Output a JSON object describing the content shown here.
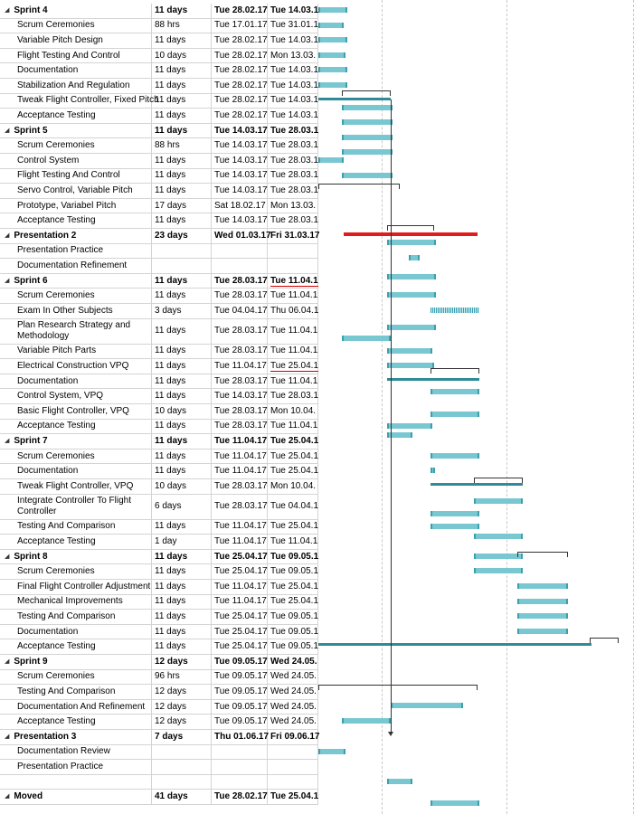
{
  "colors": {
    "task_bar": "#79c7d1",
    "task_bar_edge": "#3aa0ae",
    "summary_bar": "#2e8b97",
    "critical_bar": "#e01c1c",
    "grid": "#d4d4d4"
  },
  "rows": [
    {
      "name": "Sprint 4",
      "dur": "11 days",
      "start": "Tue 28.02.17",
      "finish": "Tue 14.03.1",
      "summary": true
    },
    {
      "name": "Scrum Ceremonies",
      "dur": "88 hrs",
      "start": "Tue 17.01.17",
      "finish": "Tue 31.01.1"
    },
    {
      "name": "Variable Pitch Design",
      "dur": "11 days",
      "start": "Tue 28.02.17",
      "finish": "Tue 14.03.1"
    },
    {
      "name": "Flight Testing And Control",
      "dur": "10 days",
      "start": "Tue 28.02.17",
      "finish": "Mon 13.03."
    },
    {
      "name": "Documentation",
      "dur": "11 days",
      "start": "Tue 28.02.17",
      "finish": "Tue 14.03.1"
    },
    {
      "name": "Stabilization And Regulation",
      "dur": "11 days",
      "start": "Tue 28.02.17",
      "finish": "Tue 14.03.1"
    },
    {
      "name": "Tweak Flight Controller, Fixed Pitch",
      "dur": "11 days",
      "start": "Tue 28.02.17",
      "finish": "Tue 14.03.1"
    },
    {
      "name": "Acceptance Testing",
      "dur": "11 days",
      "start": "Tue 28.02.17",
      "finish": "Tue 14.03.1"
    },
    {
      "name": "Sprint 5",
      "dur": "11 days",
      "start": "Tue 14.03.17",
      "finish": "Tue 28.03.1",
      "summary": true
    },
    {
      "name": "Scrum Ceremonies",
      "dur": "88 hrs",
      "start": "Tue 14.03.17",
      "finish": "Tue 28.03.1"
    },
    {
      "name": "Control System",
      "dur": "11 days",
      "start": "Tue 14.03.17",
      "finish": "Tue 28.03.1"
    },
    {
      "name": "Flight Testing And Control",
      "dur": "11 days",
      "start": "Tue 14.03.17",
      "finish": "Tue 28.03.1"
    },
    {
      "name": "Servo Control, Variable Pitch",
      "dur": "11 days",
      "start": "Tue 14.03.17",
      "finish": "Tue 28.03.1"
    },
    {
      "name": "Prototype, Variabel Pitch",
      "dur": "17 days",
      "start": "Sat 18.02.17",
      "finish": "Mon 13.03."
    },
    {
      "name": "Acceptance Testing",
      "dur": "11 days",
      "start": "Tue 14.03.17",
      "finish": "Tue 28.03.1"
    },
    {
      "name": "Presentation 2",
      "dur": "23 days",
      "start": "Wed 01.03.17",
      "finish": "Fri 31.03.17",
      "summary": true
    },
    {
      "name": "Presentation Practice",
      "dur": "",
      "start": "",
      "finish": ""
    },
    {
      "name": "Documentation Refinement",
      "dur": "",
      "start": "",
      "finish": ""
    },
    {
      "name": "Sprint 6",
      "dur": "11 days",
      "start": "Tue 28.03.17",
      "finish": "Tue 11.04.1",
      "summary": true,
      "ul": true
    },
    {
      "name": "Scrum Ceremonies",
      "dur": "11 days",
      "start": "Tue 28.03.17",
      "finish": "Tue 11.04.1"
    },
    {
      "name": "Exam In Other Subjects",
      "dur": "3 days",
      "start": "Tue 04.04.17",
      "finish": "Thu 06.04.1"
    },
    {
      "name": "Plan Research Strategy and Methodology",
      "dur": "11 days",
      "start": "Tue 28.03.17",
      "finish": "Tue 11.04.1",
      "wrap": true
    },
    {
      "name": "Variable Pitch Parts",
      "dur": "11 days",
      "start": "Tue 28.03.17",
      "finish": "Tue 11.04.1"
    },
    {
      "name": "Electrical Construction VPQ",
      "dur": "11 days",
      "start": "Tue 11.04.17",
      "finish": "Tue 25.04.1",
      "ul": true
    },
    {
      "name": "Documentation",
      "dur": "11 days",
      "start": "Tue 28.03.17",
      "finish": "Tue 11.04.1"
    },
    {
      "name": "Control System, VPQ",
      "dur": "11 days",
      "start": "Tue 14.03.17",
      "finish": "Tue 28.03.1"
    },
    {
      "name": "Basic Flight Controller, VPQ",
      "dur": "10 days",
      "start": "Tue 28.03.17",
      "finish": "Mon 10.04."
    },
    {
      "name": "Acceptance Testing",
      "dur": "11 days",
      "start": "Tue 28.03.17",
      "finish": "Tue 11.04.1"
    },
    {
      "name": "Sprint 7",
      "dur": "11 days",
      "start": "Tue 11.04.17",
      "finish": "Tue 25.04.1",
      "summary": true
    },
    {
      "name": "Scrum Ceremonies",
      "dur": "11 days",
      "start": "Tue 11.04.17",
      "finish": "Tue 25.04.1"
    },
    {
      "name": "Documentation",
      "dur": "11 days",
      "start": "Tue 11.04.17",
      "finish": "Tue 25.04.1"
    },
    {
      "name": "Tweak Flight Controller, VPQ",
      "dur": "10 days",
      "start": "Tue 28.03.17",
      "finish": "Mon 10.04."
    },
    {
      "name": "Integrate Controller To Flight Controller",
      "dur": "6 days",
      "start": "Tue 28.03.17",
      "finish": "Tue 04.04.1",
      "wrap": true
    },
    {
      "name": "Testing And Comparison",
      "dur": "11 days",
      "start": "Tue 11.04.17",
      "finish": "Tue 25.04.1"
    },
    {
      "name": "Acceptance Testing",
      "dur": "1 day",
      "start": "Tue 11.04.17",
      "finish": "Tue 11.04.1"
    },
    {
      "name": "Sprint 8",
      "dur": "11 days",
      "start": "Tue 25.04.17",
      "finish": "Tue 09.05.1",
      "summary": true
    },
    {
      "name": "Scrum Ceremonies",
      "dur": "11 days",
      "start": "Tue 25.04.17",
      "finish": "Tue 09.05.1"
    },
    {
      "name": "Final Flight Controller Adjustment",
      "dur": "11 days",
      "start": "Tue 11.04.17",
      "finish": "Tue 25.04.1"
    },
    {
      "name": "Mechanical Improvements",
      "dur": "11 days",
      "start": "Tue 11.04.17",
      "finish": "Tue 25.04.1"
    },
    {
      "name": "Testing And Comparison",
      "dur": "11 days",
      "start": "Tue 25.04.17",
      "finish": "Tue 09.05.1"
    },
    {
      "name": "Documentation",
      "dur": "11 days",
      "start": "Tue 25.04.17",
      "finish": "Tue 09.05.1"
    },
    {
      "name": "Acceptance Testing",
      "dur": "11 days",
      "start": "Tue 25.04.17",
      "finish": "Tue 09.05.1"
    },
    {
      "name": "Sprint 9",
      "dur": "12 days",
      "start": "Tue 09.05.17",
      "finish": "Wed 24.05.",
      "summary": true
    },
    {
      "name": "Scrum Ceremonies",
      "dur": "96 hrs",
      "start": "Tue 09.05.17",
      "finish": "Wed 24.05."
    },
    {
      "name": "Testing And Comparison",
      "dur": "12 days",
      "start": "Tue 09.05.17",
      "finish": "Wed 24.05."
    },
    {
      "name": "Documentation And Refinement",
      "dur": "12 days",
      "start": "Tue 09.05.17",
      "finish": "Wed 24.05."
    },
    {
      "name": "Acceptance Testing",
      "dur": "12 days",
      "start": "Tue 09.05.17",
      "finish": "Wed 24.05."
    },
    {
      "name": "Presentation 3",
      "dur": "7 days",
      "start": "Thu 01.06.17",
      "finish": "Fri 09.06.17",
      "summary": true
    },
    {
      "name": "Documentation Review",
      "dur": "",
      "start": "",
      "finish": ""
    },
    {
      "name": "Presentation Practice",
      "dur": "",
      "start": "",
      "finish": ""
    },
    {
      "name": "",
      "dur": "",
      "start": "",
      "finish": ""
    },
    {
      "name": "Moved",
      "dur": "41 days",
      "start": "Tue 28.02.17",
      "finish": "Tue 25.04.1",
      "summary": true
    }
  ]
}
